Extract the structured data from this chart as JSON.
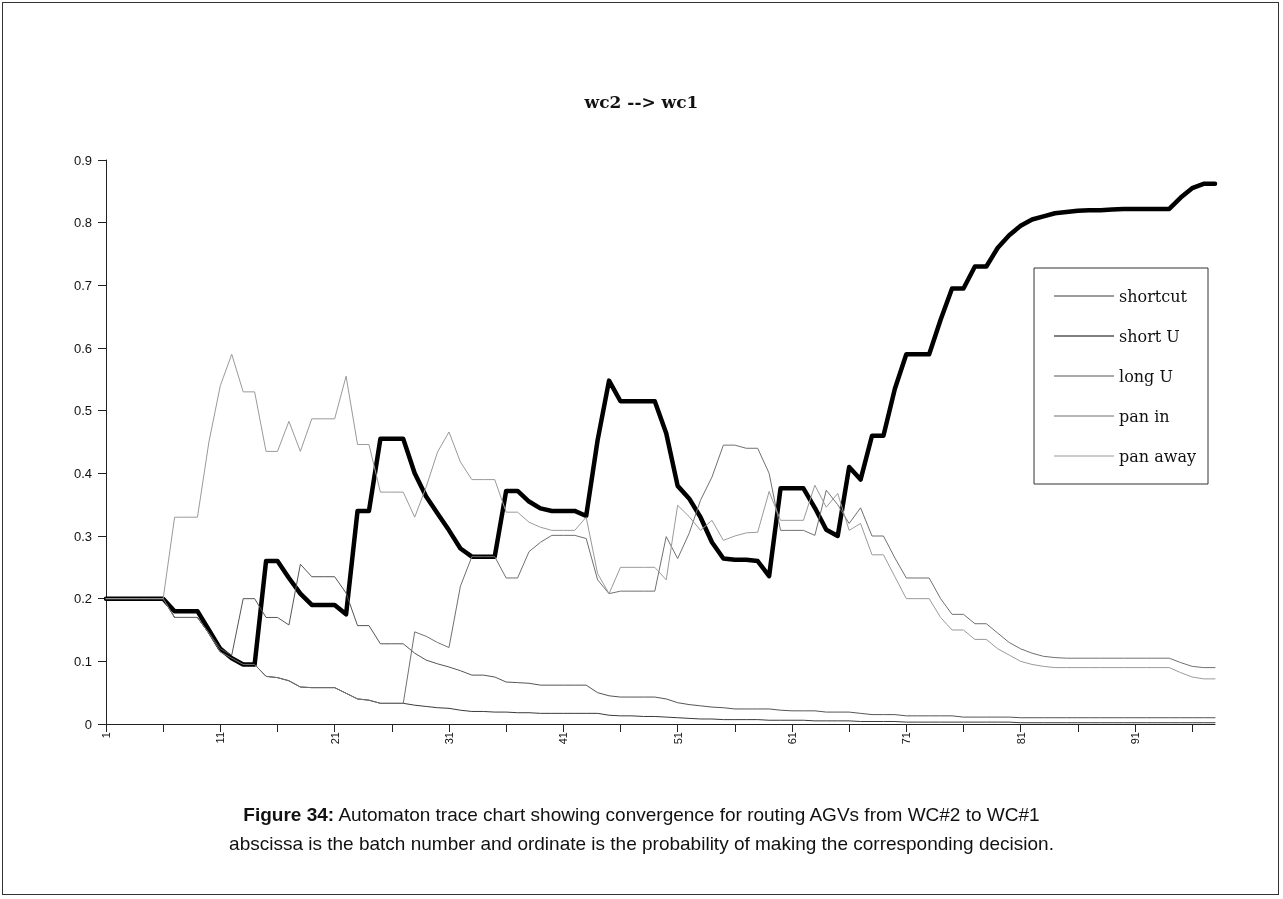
{
  "chart_data": {
    "type": "line",
    "title": "wc2 --> wc1",
    "annotations": [
      "Figure 34: Automaton trace chart showing convergence for routing AGVs from WC#2 to WC#1",
      "abscissa is the batch number and ordinate is the probability of making the corresponding decision."
    ],
    "x": [
      1,
      2,
      3,
      4,
      5,
      6,
      7,
      8,
      9,
      10,
      11,
      12,
      13,
      14,
      15,
      16,
      17,
      18,
      19,
      20,
      21,
      22,
      23,
      24,
      25,
      26,
      27,
      28,
      29,
      30,
      31,
      32,
      33,
      34,
      35,
      36,
      37,
      38,
      39,
      40,
      41,
      42,
      43,
      44,
      45,
      46,
      47,
      48,
      49,
      50,
      51,
      52,
      53,
      54,
      55,
      56,
      57,
      58,
      59,
      60,
      61,
      62,
      63,
      64,
      65,
      66,
      67,
      68,
      69,
      70,
      71,
      72,
      73,
      74,
      75,
      76,
      77,
      78,
      79,
      80,
      81,
      82,
      83,
      84,
      85,
      86,
      87,
      88,
      89,
      90,
      91,
      92,
      93,
      94,
      95,
      96,
      97,
      98
    ],
    "series": [
      {
        "name": "shortcut",
        "color": "#3a3a3a",
        "values": [
          0.2,
          0.2,
          0.2,
          0.2,
          0.2,
          0.2,
          0.17,
          0.17,
          0.17,
          0.145,
          0.115,
          0.105,
          0.095,
          0.095,
          0.076,
          0.074,
          0.069,
          0.059,
          0.058,
          0.058,
          0.058,
          0.049,
          0.04,
          0.038,
          0.033,
          0.033,
          0.033,
          0.03,
          0.028,
          0.026,
          0.025,
          0.022,
          0.02,
          0.02,
          0.019,
          0.019,
          0.018,
          0.018,
          0.017,
          0.017,
          0.017,
          0.017,
          0.017,
          0.017,
          0.014,
          0.013,
          0.013,
          0.012,
          0.012,
          0.011,
          0.01,
          0.009,
          0.008,
          0.008,
          0.007,
          0.007,
          0.007,
          0.007,
          0.006,
          0.006,
          0.006,
          0.006,
          0.005,
          0.005,
          0.005,
          0.005,
          0.004,
          0.004,
          0.004,
          0.004,
          0.003,
          0.003,
          0.003,
          0.003,
          0.003,
          0.003,
          0.003,
          0.003,
          0.003,
          0.003,
          0.002,
          0.002,
          0.002,
          0.002,
          0.002,
          0.002,
          0.002,
          0.002,
          0.002,
          0.002,
          0.002,
          0.002,
          0.002,
          0.002,
          0.002,
          0.002,
          0.002,
          0.002
        ]
      },
      {
        "name": "short U",
        "color": "#000000",
        "values": [
          0.2,
          0.2,
          0.2,
          0.2,
          0.2,
          0.2,
          0.18,
          0.18,
          0.18,
          0.15,
          0.12,
          0.105,
          0.095,
          0.095,
          0.26,
          0.26,
          0.233,
          0.208,
          0.19,
          0.19,
          0.19,
          0.175,
          0.34,
          0.34,
          0.455,
          0.455,
          0.455,
          0.4,
          0.363,
          0.336,
          0.309,
          0.28,
          0.267,
          0.267,
          0.267,
          0.372,
          0.372,
          0.355,
          0.344,
          0.34,
          0.34,
          0.34,
          0.332,
          0.453,
          0.548,
          0.515,
          0.515,
          0.515,
          0.515,
          0.464,
          0.38,
          0.36,
          0.33,
          0.29,
          0.264,
          0.262,
          0.262,
          0.26,
          0.236,
          0.376,
          0.376,
          0.376,
          0.345,
          0.31,
          0.3,
          0.41,
          0.39,
          0.46,
          0.46,
          0.535,
          0.59,
          0.59,
          0.59,
          0.645,
          0.695,
          0.695,
          0.73,
          0.73,
          0.76,
          0.78,
          0.795,
          0.805,
          0.81,
          0.815,
          0.817,
          0.819,
          0.82,
          0.82,
          0.821,
          0.822,
          0.822,
          0.822,
          0.822,
          0.822,
          0.84,
          0.855,
          0.862,
          0.862
        ]
      },
      {
        "name": "long U",
        "color": "#555555",
        "values": [
          0.2,
          0.2,
          0.2,
          0.2,
          0.2,
          0.2,
          0.17,
          0.17,
          0.17,
          0.145,
          0.12,
          0.11,
          0.2,
          0.2,
          0.17,
          0.17,
          0.158,
          0.255,
          0.235,
          0.235,
          0.235,
          0.209,
          0.157,
          0.157,
          0.128,
          0.128,
          0.128,
          0.113,
          0.102,
          0.096,
          0.091,
          0.085,
          0.078,
          0.078,
          0.075,
          0.067,
          0.066,
          0.065,
          0.062,
          0.062,
          0.062,
          0.062,
          0.062,
          0.05,
          0.045,
          0.043,
          0.043,
          0.043,
          0.043,
          0.04,
          0.034,
          0.031,
          0.029,
          0.027,
          0.026,
          0.024,
          0.024,
          0.024,
          0.024,
          0.022,
          0.021,
          0.021,
          0.021,
          0.019,
          0.019,
          0.019,
          0.017,
          0.015,
          0.015,
          0.015,
          0.013,
          0.013,
          0.013,
          0.013,
          0.013,
          0.011,
          0.011,
          0.011,
          0.011,
          0.011,
          0.01,
          0.01,
          0.01,
          0.01,
          0.01,
          0.01,
          0.01,
          0.01,
          0.01,
          0.01,
          0.01,
          0.01,
          0.01,
          0.01,
          0.01,
          0.01,
          0.01,
          0.01
        ]
      },
      {
        "name": "pan in",
        "color": "#707070",
        "values": [
          0.2,
          0.2,
          0.2,
          0.2,
          0.2,
          0.2,
          0.17,
          0.17,
          0.17,
          0.145,
          0.115,
          0.105,
          0.095,
          0.095,
          0.076,
          0.074,
          0.069,
          0.059,
          0.058,
          0.058,
          0.058,
          0.049,
          0.04,
          0.038,
          0.033,
          0.033,
          0.033,
          0.147,
          0.14,
          0.13,
          0.122,
          0.22,
          0.267,
          0.267,
          0.267,
          0.233,
          0.233,
          0.275,
          0.29,
          0.301,
          0.301,
          0.301,
          0.296,
          0.23,
          0.208,
          0.212,
          0.212,
          0.212,
          0.212,
          0.299,
          0.264,
          0.304,
          0.357,
          0.394,
          0.445,
          0.445,
          0.44,
          0.44,
          0.4,
          0.309,
          0.309,
          0.309,
          0.301,
          0.373,
          0.35,
          0.32,
          0.345,
          0.3,
          0.3,
          0.265,
          0.233,
          0.233,
          0.233,
          0.2,
          0.175,
          0.175,
          0.16,
          0.16,
          0.145,
          0.13,
          0.12,
          0.113,
          0.108,
          0.106,
          0.105,
          0.105,
          0.105,
          0.105,
          0.105,
          0.105,
          0.105,
          0.105,
          0.105,
          0.105,
          0.098,
          0.092,
          0.09,
          0.09
        ]
      },
      {
        "name": "pan away",
        "color": "#9a9a9a",
        "values": [
          0.2,
          0.2,
          0.2,
          0.2,
          0.2,
          0.2,
          0.33,
          0.33,
          0.33,
          0.45,
          0.54,
          0.59,
          0.53,
          0.53,
          0.435,
          0.435,
          0.483,
          0.435,
          0.487,
          0.487,
          0.487,
          0.555,
          0.446,
          0.446,
          0.37,
          0.37,
          0.37,
          0.33,
          0.378,
          0.434,
          0.466,
          0.418,
          0.39,
          0.39,
          0.39,
          0.338,
          0.338,
          0.322,
          0.314,
          0.309,
          0.309,
          0.309,
          0.33,
          0.24,
          0.208,
          0.25,
          0.25,
          0.25,
          0.25,
          0.23,
          0.349,
          0.331,
          0.309,
          0.325,
          0.293,
          0.3,
          0.305,
          0.306,
          0.371,
          0.325,
          0.325,
          0.325,
          0.381,
          0.346,
          0.368,
          0.309,
          0.32,
          0.27,
          0.27,
          0.235,
          0.2,
          0.2,
          0.2,
          0.17,
          0.15,
          0.15,
          0.135,
          0.135,
          0.12,
          0.11,
          0.1,
          0.095,
          0.092,
          0.09,
          0.09,
          0.09,
          0.09,
          0.09,
          0.09,
          0.09,
          0.09,
          0.09,
          0.09,
          0.09,
          0.082,
          0.075,
          0.072,
          0.072
        ]
      }
    ],
    "xlim": [
      1,
      98
    ],
    "xticks": [
      1,
      {
        "value": 6,
        "label": null
      },
      11,
      {
        "value": 16,
        "label": null
      },
      21,
      {
        "value": 26,
        "label": null
      },
      31,
      {
        "value": 36,
        "label": null
      },
      41,
      {
        "value": 46,
        "label": null
      },
      51,
      {
        "value": 56,
        "label": null
      },
      61,
      {
        "value": 66,
        "label": null
      },
      71,
      {
        "value": 76,
        "label": null
      },
      81,
      {
        "value": 86,
        "label": null
      },
      91,
      {
        "value": 96,
        "label": null
      }
    ],
    "ylim": [
      0,
      0.9
    ],
    "yticks": [
      0,
      0.1,
      0.2,
      0.3,
      0.4,
      0.5,
      0.6,
      0.7,
      0.8,
      0.9
    ],
    "legend": "right",
    "marker": "none",
    "line_style": "solid"
  }
}
